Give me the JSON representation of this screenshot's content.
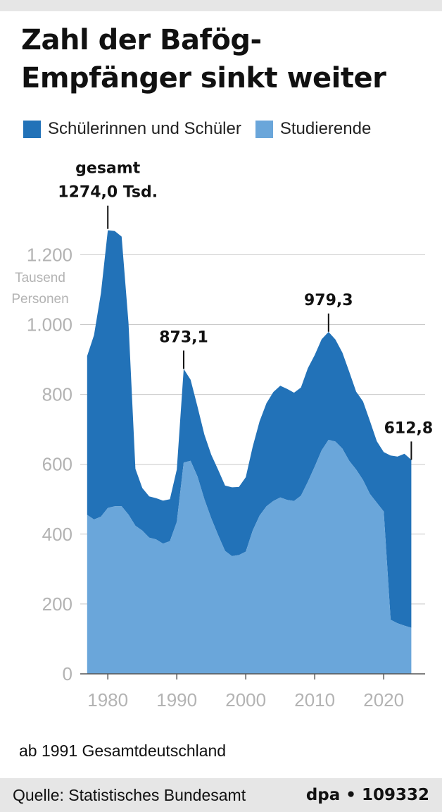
{
  "header": {
    "title_line1": "Zahl der Bafög-",
    "title_line2": "Empfänger sinkt weiter"
  },
  "legend": [
    {
      "label": "Schülerinnen und Schüler",
      "color": "#2272b8"
    },
    {
      "label": "Studierende",
      "color": "#6aa6da"
    }
  ],
  "footnote": "ab 1991 Gesamtdeutschland",
  "footer": {
    "source": "Quelle: Statistisches Bundesamt",
    "credit": "dpa • 109332"
  },
  "chart_data": {
    "type": "area",
    "stacked": true,
    "title": "Zahl der Bafög-Empfänger sinkt weiter",
    "ylabel": "Tausend Personen",
    "xlabel": "",
    "ylim": [
      0,
      1300
    ],
    "xlim": [
      1976,
      2026
    ],
    "x_ticks": [
      1980,
      1990,
      2000,
      2010,
      2020
    ],
    "y_ticks": [
      0,
      200,
      400,
      600,
      800,
      1000,
      1200
    ],
    "y_tick_labels": [
      "0",
      "200",
      "400",
      "600",
      "800",
      "1.000",
      "1.200"
    ],
    "grid": "horizontal",
    "x": [
      1977,
      1978,
      1979,
      1980,
      1981,
      1982,
      1983,
      1984,
      1985,
      1986,
      1987,
      1988,
      1989,
      1990,
      1991,
      1992,
      1993,
      1994,
      1995,
      1996,
      1997,
      1998,
      1999,
      2000,
      2001,
      2002,
      2003,
      2004,
      2005,
      2006,
      2007,
      2008,
      2009,
      2010,
      2011,
      2012,
      2013,
      2014,
      2015,
      2016,
      2017,
      2018,
      2019,
      2020,
      2021,
      2022,
      2023,
      2024
    ],
    "series": [
      {
        "name": "Studierende",
        "color": "#6aa6da",
        "values": [
          455,
          442,
          450,
          475,
          480,
          480,
          456,
          424,
          410,
          390,
          385,
          373,
          380,
          435,
          605,
          610,
          565,
          500,
          445,
          397,
          352,
          337,
          340,
          350,
          410,
          453,
          480,
          495,
          505,
          498,
          495,
          510,
          550,
          594,
          640,
          670,
          665,
          645,
          610,
          585,
          555,
          515,
          490,
          465,
          155,
          145,
          138,
          132
        ]
      },
      {
        "name": "Schülerinnen und Schüler",
        "color": "#2272b8",
        "values": [
          455,
          528,
          640,
          795,
          788,
          772,
          548,
          163,
          122,
          118,
          118,
          123,
          120,
          150,
          268,
          232,
          200,
          185,
          182,
          187,
          187,
          197,
          195,
          213,
          240,
          270,
          295,
          312,
          320,
          318,
          310,
          310,
          325,
          319,
          318,
          309,
          292,
          275,
          255,
          223,
          225,
          209,
          176,
          170,
          470,
          477,
          492,
          481
        ]
      }
    ],
    "annotations": [
      {
        "x": 1980,
        "value": 1274.0,
        "label_lines": [
          "gesamt",
          "1274,0 Tsd."
        ]
      },
      {
        "x": 1991,
        "value": 873.1,
        "label_lines": [
          "873,1"
        ]
      },
      {
        "x": 2012,
        "value": 979.3,
        "label_lines": [
          "979,3"
        ]
      },
      {
        "x": 2024,
        "value": 612.8,
        "label_lines": [
          "612,8"
        ]
      }
    ]
  }
}
